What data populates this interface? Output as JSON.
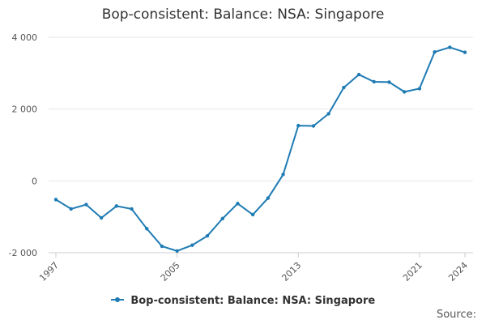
{
  "colors": {
    "line": "#1f7bb4",
    "grid": "#e6e6e6",
    "text": "#333333"
  },
  "source_label": "Source:",
  "chart_data": {
    "type": "line",
    "title": "Bop-consistent: Balance: NSA: Singapore",
    "xlabel": "",
    "ylabel": "",
    "ylim": [
      -2000,
      4000
    ],
    "xlim": [
      1997,
      2024
    ],
    "y_ticks": [
      {
        "value": -2000,
        "label": "-2 000"
      },
      {
        "value": 0,
        "label": "0"
      },
      {
        "value": 2000,
        "label": "2 000"
      },
      {
        "value": 4000,
        "label": "4 000"
      }
    ],
    "x_ticks": [
      {
        "value": 1997,
        "label": "1997"
      },
      {
        "value": 2005,
        "label": "2005"
      },
      {
        "value": 2013,
        "label": "2013"
      },
      {
        "value": 2021,
        "label": "2021"
      },
      {
        "value": 2024,
        "label": "2024"
      }
    ],
    "grid": true,
    "legend_position": "bottom",
    "x": [
      1997,
      1998,
      1999,
      2000,
      2001,
      2002,
      2003,
      2004,
      2005,
      2006,
      2007,
      2008,
      2009,
      2010,
      2011,
      2012,
      2013,
      2014,
      2015,
      2016,
      2017,
      2018,
      2019,
      2020,
      2021,
      2022,
      2023,
      2024
    ],
    "series": [
      {
        "name": "Bop-consistent: Balance: NSA: Singapore",
        "values": [
          -520,
          -780,
          -660,
          -1030,
          -700,
          -780,
          -1330,
          -1820,
          -1950,
          -1790,
          -1530,
          -1050,
          -630,
          -940,
          -480,
          180,
          1540,
          1530,
          1870,
          2600,
          2960,
          2760,
          2750,
          2480,
          2570,
          3590,
          3720,
          3580
        ]
      }
    ]
  }
}
